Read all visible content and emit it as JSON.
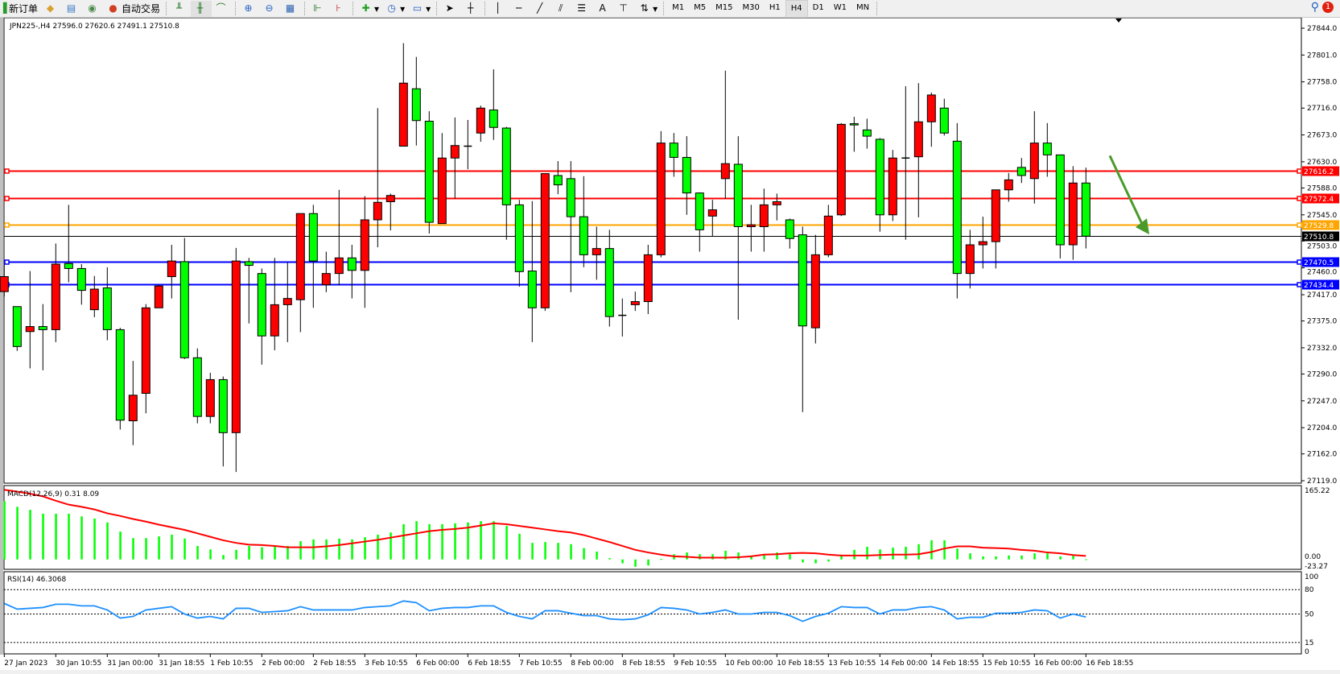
{
  "toolbar": {
    "new_order": "新订单",
    "auto_trading": "自动交易",
    "icons": [
      "new-order-icon",
      "folder-icon",
      "history-center-icon",
      "signal-icon",
      "auto-trading-icon",
      "bar-chart-icon",
      "candlestick-icon",
      "line-chart-icon",
      "zoom-in-icon",
      "zoom-out-icon",
      "tile-windows-icon",
      "chart-shift-icon",
      "autoscroll-icon",
      "indicators-icon",
      "periods-icon",
      "templates-icon",
      "cursor-icon",
      "crosshair-icon",
      "vertical-line-icon",
      "horizontal-line-icon",
      "trendline-icon",
      "fibonacci-fan-icon",
      "fibonacci-retracement-icon",
      "text-icon",
      "text-label-icon",
      "arrows-icon"
    ],
    "text_tool": "A",
    "timeframes": [
      "M1",
      "M5",
      "M15",
      "M30",
      "H1",
      "H4",
      "D1",
      "W1",
      "MN"
    ],
    "active_timeframe": "H4",
    "notification_count": "1"
  },
  "chart": {
    "header": "JPN225-,H4  27596.0 27620.6 27491.1 27510.8",
    "macd_label": "MACD(12,26,9) 0.31 8.09",
    "rsi_label": "RSI(14) 46.3068",
    "colors": {
      "bull": "#ff0000",
      "bear": "#00ff00",
      "macd_hist": "#00ff00",
      "signal": "#ff0000",
      "rsi": "#1e90ff",
      "arrow": "#4a9a2a"
    }
  },
  "chart_data": {
    "type": "candlestick",
    "symbol": "JPN225-",
    "timeframe": "H4",
    "price_ticks": [
      "27844.0",
      "27801.0",
      "27758.0",
      "27716.0",
      "27673.0",
      "27630.0",
      "27588.0",
      "27545.0",
      "27503.0",
      "27460.0",
      "27417.0",
      "27375.0",
      "27332.0",
      "27290.0",
      "27247.0",
      "27204.0",
      "27162.0",
      "27119.0"
    ],
    "ylim": [
      27119,
      27844
    ],
    "time_labels": [
      "27 Jan 2023",
      "30 Jan 10:55",
      "31 Jan 00:00",
      "31 Jan 18:55",
      "1 Feb 10:55",
      "2 Feb 00:00",
      "2 Feb 18:55",
      "3 Feb 10:55",
      "6 Feb 00:00",
      "6 Feb 18:55",
      "7 Feb 10:55",
      "8 Feb 00:00",
      "8 Feb 18:55",
      "9 Feb 10:55",
      "10 Feb 00:00",
      "10 Feb 18:55",
      "13 Feb 10:55",
      "14 Feb 00:00",
      "14 Feb 18:55",
      "15 Feb 10:55",
      "16 Feb 00:00",
      "16 Feb 18:55"
    ],
    "ohlc": [
      [
        27422,
        27465,
        27414,
        27446
      ],
      [
        27398,
        27398,
        27327,
        27334
      ],
      [
        27358,
        27455,
        27299,
        27366
      ],
      [
        27366,
        27402,
        27296,
        27361
      ],
      [
        27361,
        27499,
        27341,
        27466
      ],
      [
        27467,
        27561,
        27437,
        27459
      ],
      [
        27459,
        27466,
        27401,
        27424
      ],
      [
        27393,
        27447,
        27381,
        27426
      ],
      [
        27428,
        27461,
        27344,
        27361
      ],
      [
        27361,
        27364,
        27201,
        27216
      ],
      [
        27215,
        27311,
        27176,
        27256
      ],
      [
        27259,
        27402,
        27227,
        27396
      ],
      [
        27396,
        27433,
        27396,
        27431
      ],
      [
        27446,
        27497,
        27411,
        27471
      ],
      [
        27470,
        27508,
        27314,
        27316
      ],
      [
        27316,
        27331,
        27211,
        27222
      ],
      [
        27222,
        27292,
        27211,
        27281
      ],
      [
        27281,
        27286,
        27142,
        27196
      ],
      [
        27196,
        27492,
        27133,
        27471
      ],
      [
        27470,
        27476,
        27371,
        27464
      ],
      [
        27451,
        27459,
        27305,
        27351
      ],
      [
        27351,
        27476,
        27328,
        27401
      ],
      [
        27401,
        27468,
        27341,
        27411
      ],
      [
        27409,
        27547,
        27357,
        27547
      ],
      [
        27547,
        27561,
        27396,
        27471
      ],
      [
        27433,
        27486,
        27421,
        27451
      ],
      [
        27451,
        27585,
        27432,
        27476
      ],
      [
        27476,
        27497,
        27411,
        27456
      ],
      [
        27456,
        27575,
        27396,
        27537
      ],
      [
        27537,
        27716,
        27493,
        27565
      ],
      [
        27566,
        27579,
        27520,
        27576
      ],
      [
        27655,
        27820,
        27655,
        27756
      ],
      [
        27747,
        27798,
        27656,
        27696
      ],
      [
        27695,
        27711,
        27515,
        27533
      ],
      [
        27531,
        27676,
        27531,
        27636
      ],
      [
        27636,
        27701,
        27571,
        27656
      ],
      [
        27655,
        27697,
        27618,
        27655
      ],
      [
        27676,
        27720,
        27662,
        27716
      ],
      [
        27713,
        27778,
        27665,
        27685
      ],
      [
        27684,
        27686,
        27505,
        27561
      ],
      [
        27561,
        27569,
        27430,
        27454
      ],
      [
        27455,
        27567,
        27341,
        27396
      ],
      [
        27396,
        27611,
        27391,
        27611
      ],
      [
        27608,
        27631,
        27578,
        27593
      ],
      [
        27603,
        27631,
        27421,
        27542
      ],
      [
        27542,
        27607,
        27461,
        27481
      ],
      [
        27481,
        27526,
        27441,
        27491
      ],
      [
        27491,
        27521,
        27366,
        27382
      ],
      [
        27384,
        27411,
        27350,
        27384
      ],
      [
        27401,
        27422,
        27391,
        27406
      ],
      [
        27406,
        27497,
        27386,
        27481
      ],
      [
        27481,
        27679,
        27477,
        27660
      ],
      [
        27660,
        27676,
        27606,
        27637
      ],
      [
        27637,
        27671,
        27545,
        27580
      ],
      [
        27580,
        27581,
        27486,
        27521
      ],
      [
        27543,
        27569,
        27511,
        27553
      ],
      [
        27603,
        27776,
        27571,
        27627
      ],
      [
        27626,
        27671,
        27377,
        27526
      ],
      [
        27526,
        27561,
        27486,
        27529
      ],
      [
        27526,
        27587,
        27486,
        27561
      ],
      [
        27561,
        27579,
        27536,
        27566
      ],
      [
        27537,
        27539,
        27491,
        27507
      ],
      [
        27513,
        27526,
        27229,
        27367
      ],
      [
        27364,
        27513,
        27339,
        27481
      ],
      [
        27481,
        27561,
        27477,
        27543
      ],
      [
        27545,
        27692,
        27543,
        27690
      ],
      [
        27691,
        27702,
        27646,
        27689
      ],
      [
        27681,
        27699,
        27651,
        27671
      ],
      [
        27666,
        27668,
        27518,
        27545
      ],
      [
        27545,
        27649,
        27535,
        27636
      ],
      [
        27636,
        27751,
        27505,
        27636
      ],
      [
        27638,
        27756,
        27541,
        27694
      ],
      [
        27694,
        27741,
        27654,
        27737
      ],
      [
        27716,
        27731,
        27672,
        27676
      ],
      [
        27663,
        27692,
        27411,
        27451
      ],
      [
        27451,
        27521,
        27427,
        27497
      ],
      [
        27497,
        27542,
        27459,
        27502
      ],
      [
        27502,
        27585,
        27459,
        27585
      ],
      [
        27585,
        27612,
        27566,
        27601
      ],
      [
        27621,
        27636,
        27596,
        27608
      ],
      [
        27603,
        27711,
        27563,
        27660
      ],
      [
        27660,
        27692,
        27606,
        27641
      ],
      [
        27641,
        27641,
        27475,
        27497
      ],
      [
        27497,
        27623,
        27473,
        27596
      ],
      [
        27596,
        27620.6,
        27491.1,
        27510.8
      ]
    ],
    "levels": [
      {
        "price": "27616.2",
        "color": "#ff0000"
      },
      {
        "price": "27572.4",
        "color": "#ff0000"
      },
      {
        "price": "27529.8",
        "color": "#ffa500"
      },
      {
        "price": "27510.8",
        "color": "#000000"
      },
      {
        "price": "27470.5",
        "color": "#0000ff"
      },
      {
        "price": "27434.4",
        "color": "#0000ff"
      }
    ],
    "annotation": {
      "type": "arrow",
      "direction": "down-right",
      "color": "#4a9a2a",
      "from_price": 27610,
      "to_price": 27520
    },
    "macd": {
      "ticks": [
        "165.22",
        "0.00",
        "-23.27"
      ],
      "ylim": [
        -23.27,
        165.22
      ],
      "histogram": [
        134,
        121,
        114,
        105,
        105,
        105,
        99,
        94,
        85,
        64,
        49,
        49,
        53,
        57,
        48,
        31,
        23,
        10,
        22,
        31,
        28,
        31,
        31,
        42,
        46,
        46,
        48,
        46,
        51,
        57,
        62,
        81,
        88,
        81,
        81,
        83,
        85,
        88,
        88,
        77,
        59,
        38,
        40,
        38,
        35,
        26,
        18,
        3,
        -9,
        -17,
        -14,
        1,
        12,
        16,
        12,
        12,
        20,
        16,
        9,
        12,
        16,
        12,
        -7,
        -9,
        -5,
        11,
        22,
        29,
        23,
        27,
        29,
        35,
        44,
        44,
        25,
        14,
        7,
        7,
        9,
        9,
        14,
        14,
        7,
        9,
        0.31
      ],
      "signal": [
        160,
        156,
        151,
        145,
        135,
        126,
        121,
        115,
        106,
        100,
        93,
        87,
        80,
        74,
        68,
        60,
        52,
        44,
        38,
        34,
        33,
        31,
        28,
        28,
        28,
        30,
        33,
        37,
        41,
        45,
        50,
        55,
        60,
        65,
        68,
        70,
        73,
        78,
        83,
        81,
        77,
        73,
        69,
        65,
        62,
        56,
        48,
        40,
        31,
        22,
        16,
        11,
        7,
        6,
        4,
        4,
        4,
        5,
        7,
        11,
        12,
        14,
        15,
        14,
        11,
        9,
        9,
        9,
        10,
        11,
        11,
        12,
        17,
        25,
        30,
        30,
        27,
        26,
        25,
        22,
        20,
        16,
        14,
        10,
        8.09
      ]
    },
    "rsi": {
      "ticks": [
        "100",
        "80",
        "50",
        "15",
        "0"
      ],
      "levels": [
        80,
        50,
        15
      ],
      "ylim": [
        0,
        100
      ],
      "values": [
        63,
        56,
        57,
        58,
        62,
        62,
        60,
        60,
        55,
        45,
        47,
        55,
        57,
        59,
        50,
        45,
        47,
        44,
        57,
        57,
        52,
        53,
        54,
        59,
        55,
        55,
        55,
        55,
        58,
        59,
        60,
        66,
        64,
        54,
        57,
        58,
        58,
        60,
        60,
        52,
        47,
        44,
        54,
        54,
        51,
        48,
        48,
        44,
        43,
        44,
        49,
        58,
        57,
        55,
        50,
        52,
        55,
        50,
        50,
        52,
        52,
        48,
        41,
        47,
        51,
        59,
        58,
        58,
        50,
        55,
        55,
        58,
        59,
        55,
        44,
        46,
        46,
        51,
        51,
        52,
        55,
        54,
        45,
        50,
        46.3068
      ]
    }
  }
}
